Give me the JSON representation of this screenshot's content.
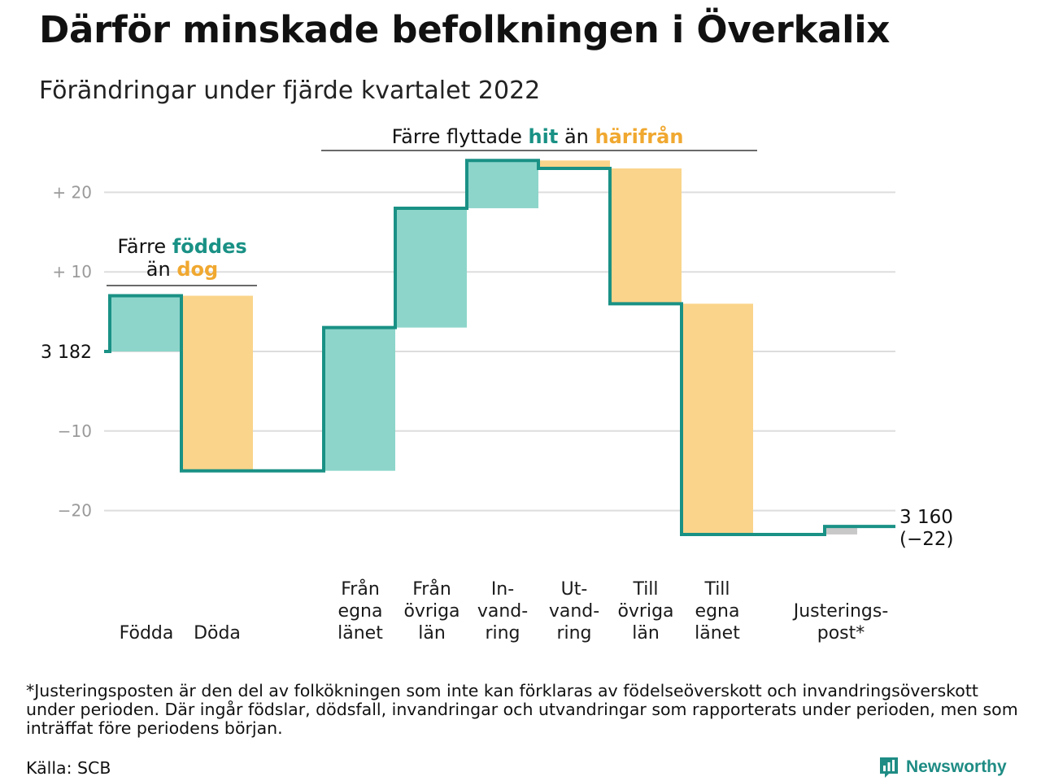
{
  "header": {
    "title": "Därför minskade befolkningen i Överkalix",
    "subtitle": "Förändringar under fjärde kvartalet 2022"
  },
  "chart_data": {
    "type": "waterfall",
    "start": {
      "value": 3182,
      "label": "3 182"
    },
    "end": {
      "value": 3160,
      "label_line1": "3 160",
      "label_line2": "(−22)"
    },
    "y_axis": {
      "relative_to": 3182,
      "ticks": [
        {
          "value": 20,
          "label": "+ 20"
        },
        {
          "value": 10,
          "label": "+ 10"
        },
        {
          "value": 0,
          "label": ""
        },
        {
          "value": -10,
          "label": "−10"
        },
        {
          "value": -20,
          "label": "−20"
        }
      ],
      "ylim": [
        -25,
        25
      ]
    },
    "steps": [
      {
        "id": "fodda",
        "lines": [
          "Födda"
        ],
        "value": 7,
        "kind": "gain"
      },
      {
        "id": "doda",
        "lines": [
          "Döda"
        ],
        "value": -22,
        "kind": "loss"
      },
      {
        "id": "fran-egna-lanet",
        "lines": [
          "Från",
          "egna",
          "länet"
        ],
        "value": 18,
        "kind": "gain"
      },
      {
        "id": "fran-ovriga-lan",
        "lines": [
          "Från",
          "övriga",
          "län"
        ],
        "value": 15,
        "kind": "gain"
      },
      {
        "id": "invandring",
        "lines": [
          "In-",
          "vand-",
          "ring"
        ],
        "value": 6,
        "kind": "gain"
      },
      {
        "id": "utvandring",
        "lines": [
          "Ut-",
          "vand-",
          "ring"
        ],
        "value": -1,
        "kind": "loss"
      },
      {
        "id": "till-ovriga-lan",
        "lines": [
          "Till",
          "övriga",
          "län"
        ],
        "value": -17,
        "kind": "loss"
      },
      {
        "id": "till-egna-lanet",
        "lines": [
          "Till",
          "egna",
          "länet"
        ],
        "value": -29,
        "kind": "loss"
      },
      {
        "id": "justeringspost",
        "lines": [
          "Justerings-",
          "post*"
        ],
        "value": 1,
        "kind": "adjustment"
      }
    ],
    "annotations": {
      "births": {
        "pre": "Färre ",
        "hl1": "föddes",
        "line2_pre": "än ",
        "hl2": "dog"
      },
      "migration": {
        "pre": "Färre flyttade ",
        "hl1": "hit",
        "mid": " än ",
        "hl2": "härifrån"
      }
    },
    "colors": {
      "gain": "#8dd5ca",
      "loss": "#fad48a",
      "adjustment": "#c8c8c8",
      "line": "#1a9185",
      "grid": "#dddddd",
      "highlight_gain": "#1a9185",
      "highlight_loss": "#f0a830"
    }
  },
  "footnote": "*Justeringsposten är den del av folkökningen som inte kan förklaras av födelseöverskott och invandringsöverskott under perioden. Där ingår födslar, dödsfall, invandringar och utvandringar som rapporterats under perioden, men som inträffat före periodens början.",
  "source": "Källa: SCB",
  "brand": {
    "name": "Newsworthy",
    "icon": "newsworthy-logo-icon",
    "color": "#1e8c84"
  }
}
